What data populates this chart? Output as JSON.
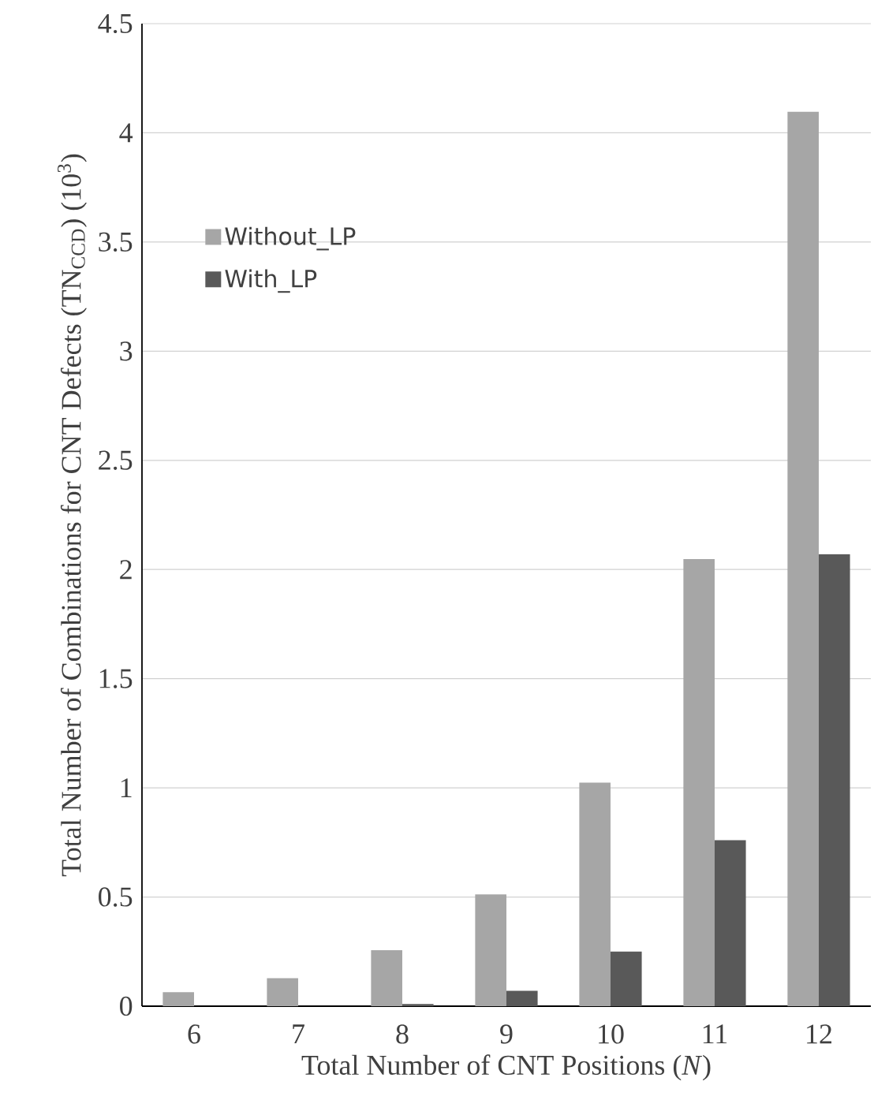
{
  "chart_data": {
    "type": "bar",
    "xlabel": "Total Number of CNT Positions (*N*)",
    "ylabel": "Total Number of Combinations for CNT Defects  (TN$_{CCD}$) (10$^{3}$)",
    "categories": [
      "6",
      "7",
      "8",
      "9",
      "10",
      "11",
      "12"
    ],
    "series": [
      {
        "name": "Without_LP",
        "color": "#a6a6a6",
        "values": [
          0.064,
          0.128,
          0.256,
          0.512,
          1.024,
          2.048,
          4.096
        ]
      },
      {
        "name": "With_LP",
        "color": "#595959",
        "values": [
          0,
          0,
          0.01,
          0.07,
          0.25,
          0.76,
          2.07
        ]
      }
    ],
    "ylim": [
      0,
      4.5
    ],
    "yticks": [
      0,
      0.5,
      1,
      1.5,
      2,
      2.5,
      3,
      3.5,
      4,
      4.5
    ],
    "grid": "y",
    "legend": "top left"
  }
}
